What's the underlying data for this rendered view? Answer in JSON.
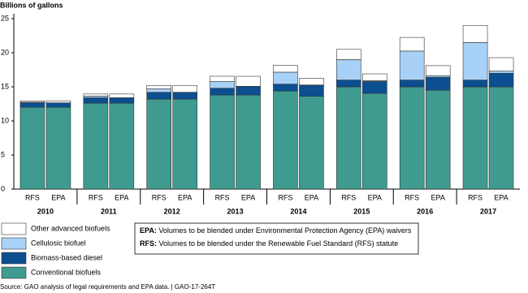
{
  "chart_data": {
    "type": "stacked_bar",
    "y_label": "Billions of gallons",
    "group_labels": [
      "2010",
      "2011",
      "2012",
      "2013",
      "2014",
      "2015",
      "2016",
      "2017"
    ],
    "categories": [
      "RFS",
      "EPA",
      "RFS",
      "EPA",
      "RFS",
      "EPA",
      "RFS",
      "EPA",
      "RFS",
      "EPA",
      "RFS",
      "EPA",
      "RFS",
      "EPA",
      "RFS",
      "EPA"
    ],
    "series": [
      {
        "name": "Conventional biofuels",
        "color": "#3f9b8f",
        "values": [
          12.0,
          12.0,
          12.6,
          12.6,
          13.2,
          13.2,
          13.8,
          13.8,
          14.4,
          13.61,
          15.0,
          14.05,
          15.0,
          14.5,
          15.0,
          15.0
        ]
      },
      {
        "name": "Biomass-based diesel",
        "color": "#0b4f91",
        "values": [
          0.65,
          0.65,
          0.8,
          0.8,
          1.0,
          1.0,
          1.0,
          1.28,
          1.0,
          1.63,
          1.0,
          1.73,
          1.0,
          1.9,
          1.0,
          2.0
        ]
      },
      {
        "name": "Cellulosic biofuel",
        "color": "#a8d1f7",
        "values": [
          0.1,
          0.0065,
          0.25,
          0.006,
          0.5,
          0.01,
          1.0,
          0.006,
          1.75,
          0.033,
          3.0,
          0.123,
          4.25,
          0.23,
          5.5,
          0.311
        ]
      },
      {
        "name": "Other advanced biofuels",
        "color": "#ffffff",
        "values": [
          0.2,
          0.29,
          0.3,
          0.54,
          0.5,
          1.0,
          0.75,
          1.46,
          1.0,
          1.0,
          1.5,
          1.0,
          2.0,
          1.48,
          2.5,
          1.97
        ]
      }
    ],
    "ylim": [
      0,
      25
    ],
    "yticks": [
      0,
      5,
      10,
      15,
      20,
      25
    ],
    "notes": [
      {
        "label": "EPA:",
        "text": " Volumes to be blended under Environmental Protection Agency (EPA) waivers"
      },
      {
        "label": "RFS:",
        "text": " Volumes to be blended under the Renewable Fuel Standard (RFS) statute"
      }
    ],
    "source": "Source: GAO analysis of legal requirements and EPA data.  |  GAO-17-264T"
  }
}
